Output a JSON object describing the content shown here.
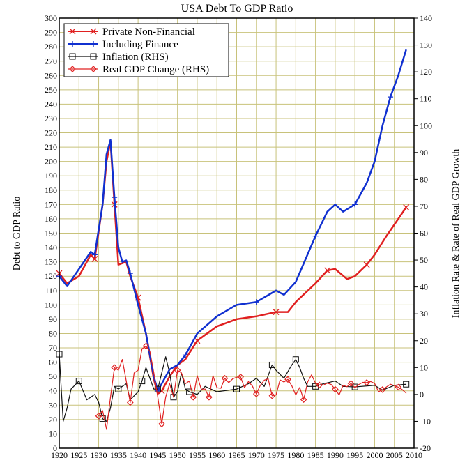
{
  "chart_data": {
    "type": "line",
    "title": "USA Debt To GDP Ratio",
    "xlabel": "",
    "ylabel": "Debt to GDP Ratio",
    "ylabel_right": "Inflation Rate & Rate of Real GDP Growth",
    "xlim": [
      1920,
      2010
    ],
    "ylim": [
      0,
      300
    ],
    "ylim_right": [
      -20,
      140
    ],
    "grid": true,
    "legend_position": "top-left",
    "x_ticks": [
      "1920",
      "1925",
      "1930",
      "1935",
      "1940",
      "1945",
      "1950",
      "1955",
      "1960",
      "1965",
      "1970",
      "1975",
      "1980",
      "1985",
      "1990",
      "1995",
      "2000",
      "2005",
      "2010"
    ],
    "y_ticks": [
      "0",
      "10",
      "20",
      "30",
      "40",
      "50",
      "60",
      "70",
      "80",
      "90",
      "100",
      "110",
      "120",
      "130",
      "140",
      "150",
      "160",
      "170",
      "180",
      "190",
      "200",
      "210",
      "220",
      "230",
      "240",
      "250",
      "260",
      "270",
      "280",
      "290",
      "300"
    ],
    "y_ticks_right": [
      "-20",
      "-10",
      "0",
      "10",
      "20",
      "30",
      "40",
      "50",
      "60",
      "70",
      "80",
      "90",
      "100",
      "110",
      "120",
      "130",
      "140"
    ],
    "series": [
      {
        "name": "Private Non-Financial",
        "axis": "left",
        "color": "#e02020",
        "marker": "x",
        "x": [
          1920,
          1922,
          1925,
          1928,
          1929,
          1931,
          1932,
          1933,
          1934,
          1935,
          1937,
          1938,
          1940,
          1942,
          1944,
          1945,
          1946,
          1948,
          1950,
          1952,
          1955,
          1960,
          1965,
          1970,
          1975,
          1978,
          1980,
          1985,
          1988,
          1990,
          1993,
          1995,
          1998,
          2000,
          2003,
          2006,
          2008
        ],
        "y": [
          122,
          115,
          120,
          135,
          132,
          170,
          200,
          214,
          170,
          128,
          130,
          120,
          105,
          80,
          48,
          38,
          40,
          50,
          58,
          62,
          75,
          85,
          90,
          92,
          95,
          95,
          102,
          115,
          124,
          125,
          118,
          120,
          128,
          135,
          148,
          160,
          168
        ]
      },
      {
        "name": "Including Finance",
        "axis": "left",
        "color": "#1030d0",
        "marker": "+",
        "x": [
          1920,
          1922,
          1925,
          1928,
          1929,
          1931,
          1932,
          1933,
          1934,
          1935,
          1936,
          1937,
          1938,
          1940,
          1942,
          1944,
          1945,
          1946,
          1948,
          1950,
          1952,
          1955,
          1960,
          1965,
          1970,
          1975,
          1977,
          1980,
          1985,
          1988,
          1990,
          1992,
          1995,
          1998,
          2000,
          2002,
          2004,
          2006,
          2008
        ],
        "y": [
          120,
          113,
          125,
          137,
          135,
          170,
          205,
          215,
          175,
          140,
          130,
          131,
          122,
          100,
          80,
          50,
          40,
          45,
          55,
          58,
          65,
          80,
          92,
          100,
          102,
          110,
          107,
          116,
          148,
          165,
          170,
          165,
          170,
          185,
          200,
          225,
          245,
          260,
          278
        ]
      },
      {
        "name": "Inflation (RHS)",
        "axis": "right",
        "color": "#111111",
        "marker": "square",
        "x": [
          1920,
          1921,
          1922,
          1923,
          1925,
          1927,
          1929,
          1930,
          1931,
          1932,
          1933,
          1934,
          1935,
          1937,
          1938,
          1940,
          1941,
          1942,
          1943,
          1944,
          1945,
          1946,
          1947,
          1948,
          1949,
          1950,
          1951,
          1952,
          1953,
          1955,
          1957,
          1960,
          1965,
          1968,
          1970,
          1972,
          1974,
          1975,
          1977,
          1979,
          1980,
          1981,
          1982,
          1983,
          1985,
          1987,
          1990,
          1992,
          1995,
          2000,
          2002,
          2005,
          2008
        ],
        "y": [
          15,
          -10,
          -5,
          2,
          5,
          -2,
          0,
          -3,
          -9,
          -10,
          -5,
          3,
          2,
          4,
          -2,
          1,
          5,
          10,
          6,
          2,
          2,
          8,
          14,
          8,
          -1,
          1,
          8,
          2,
          1,
          0,
          3,
          1,
          2,
          4,
          6,
          3,
          11,
          9,
          6,
          11,
          13,
          10,
          6,
          3,
          3,
          4,
          5,
          3,
          2.8,
          3.4,
          1.6,
          3.4,
          3.8
        ]
      },
      {
        "name": "Real GDP Change (RHS)",
        "axis": "right",
        "color": "#e02020",
        "marker": "diamond",
        "x": [
          1930,
          1931,
          1932,
          1933,
          1934,
          1935,
          1936,
          1937,
          1938,
          1939,
          1940,
          1941,
          1942,
          1943,
          1944,
          1945,
          1946,
          1947,
          1948,
          1949,
          1950,
          1951,
          1952,
          1953,
          1954,
          1955,
          1956,
          1957,
          1958,
          1959,
          1960,
          1961,
          1962,
          1963,
          1964,
          1965,
          1966,
          1967,
          1968,
          1969,
          1970,
          1971,
          1972,
          1973,
          1974,
          1975,
          1976,
          1977,
          1978,
          1979,
          1980,
          1981,
          1982,
          1983,
          1984,
          1985,
          1986,
          1987,
          1988,
          1989,
          1990,
          1991,
          1992,
          1993,
          1994,
          1995,
          1996,
          1997,
          1998,
          1999,
          2000,
          2001,
          2002,
          2003,
          2004,
          2005,
          2006,
          2007,
          2008
        ],
        "y": [
          -8,
          -6,
          -13,
          -1,
          10,
          9,
          13,
          5,
          -3,
          8,
          9,
          17,
          18,
          16,
          8,
          -1,
          -11,
          -1,
          4,
          -1,
          9,
          8,
          4,
          5,
          -1,
          7,
          2,
          2,
          -1,
          7,
          2.5,
          2.3,
          6,
          4.4,
          5.8,
          6.4,
          6.5,
          2.5,
          4.8,
          3.1,
          0.2,
          3.4,
          5.3,
          5.8,
          -0.5,
          -0.2,
          5.4,
          4.6,
          5.6,
          3.2,
          -0.2,
          2.6,
          -1.9,
          4.6,
          7.3,
          4.2,
          3.5,
          3.5,
          4.2,
          3.7,
          1.9,
          -0.2,
          3.4,
          2.9,
          4.1,
          2.5,
          3.7,
          4.5,
          4.4,
          4.8,
          4.1,
          1,
          1.8,
          2.8,
          3.8,
          3.3,
          2.7,
          1.8,
          0.5
        ]
      }
    ]
  }
}
